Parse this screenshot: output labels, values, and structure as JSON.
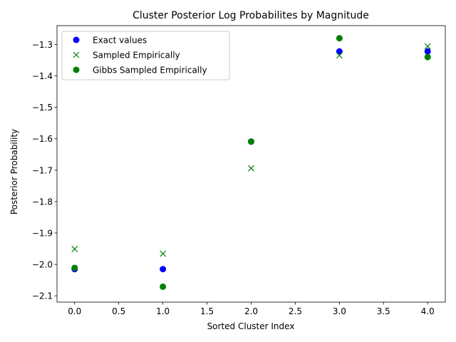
{
  "chart_data": {
    "type": "scatter",
    "title": "Cluster Posterior Log Probabilites by Magnitude",
    "xlabel": "Sorted Cluster Index",
    "ylabel": "Posterior Probability",
    "xlim": [
      -0.2,
      4.2
    ],
    "ylim": [
      -2.12,
      -1.24
    ],
    "xticks": [
      0.0,
      0.5,
      1.0,
      1.5,
      2.0,
      2.5,
      3.0,
      3.5,
      4.0
    ],
    "xtick_labels": [
      "0.0",
      "0.5",
      "1.0",
      "1.5",
      "2.0",
      "2.5",
      "3.0",
      "3.5",
      "4.0"
    ],
    "yticks": [
      -2.1,
      -2.0,
      -1.9,
      -1.8,
      -1.7,
      -1.6,
      -1.5,
      -1.4,
      -1.3
    ],
    "ytick_labels": [
      "−2.1",
      "−2.0",
      "−1.9",
      "−1.8",
      "−1.7",
      "−1.6",
      "−1.5",
      "−1.4",
      "−1.3"
    ],
    "grid": false,
    "legend_position": "top-left",
    "series": [
      {
        "name": "Exact values",
        "marker": "circle",
        "color": "#0000ff",
        "x": [
          0,
          1,
          2,
          3,
          4
        ],
        "y": [
          -2.015,
          -2.015,
          -1.609,
          -1.322,
          -1.322
        ]
      },
      {
        "name": "Sampled Empirically",
        "marker": "x",
        "color": "#008000",
        "x": [
          0,
          1,
          2,
          3,
          4
        ],
        "y": [
          -1.951,
          -1.966,
          -1.694,
          -1.335,
          -1.306
        ]
      },
      {
        "name": "Gibbs Sampled Empirically",
        "marker": "circle",
        "color": "#008000",
        "x": [
          0,
          1,
          2,
          3,
          4
        ],
        "y": [
          -2.011,
          -2.071,
          -1.609,
          -1.28,
          -1.34
        ]
      }
    ]
  }
}
